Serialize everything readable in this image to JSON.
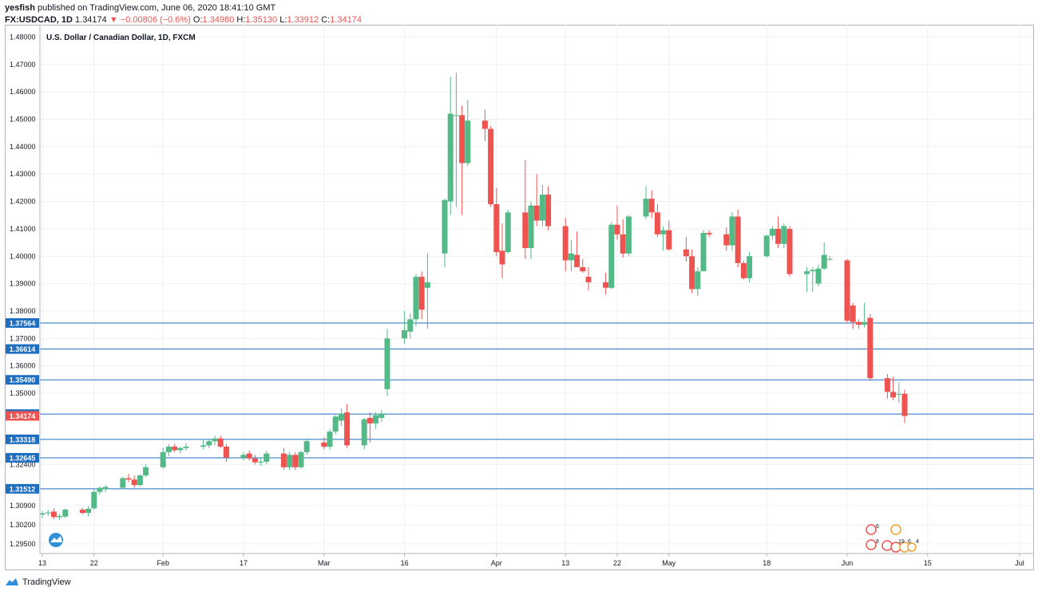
{
  "header": {
    "author": "yesfish",
    "published": "published on TradingView.com, June 06, 2020 18:41:10 GMT",
    "symbol": "FX:USDCAD, 1D",
    "last": "1.34174",
    "change": "▼ −0.00806 (−0.6%)",
    "o_label": "O:",
    "o_value": "1.34980",
    "h_label": "H:",
    "h_value": "1.35130",
    "l_label": "L:",
    "l_value": "1.33912",
    "c_label": "C:",
    "c_value": "1.34174"
  },
  "footer": {
    "brand": "TradingView"
  },
  "colors": {
    "up": "#52b987",
    "down": "#ef5350",
    "level": "#1e6fc2",
    "grid": "#eef0f3",
    "axis": "#b2b5be"
  },
  "chart_data": {
    "type": "candlestick",
    "title": "U.S. Dollar / Canadian Dollar, 1D, FXCM",
    "ylim": [
      1.2915,
      1.4845
    ],
    "y_ticks": [
      "1.48000",
      "1.47000",
      "1.46000",
      "1.45000",
      "1.44000",
      "1.43000",
      "1.42000",
      "1.41000",
      "1.40000",
      "1.39000",
      "1.38000",
      "1.37000",
      "1.36000",
      "1.35000",
      "1.32400",
      "1.30900",
      "1.30200",
      "1.29500"
    ],
    "x_ticks": [
      {
        "label": "13",
        "date": "2020-01-13"
      },
      {
        "label": "22",
        "date": "2020-01-22"
      },
      {
        "label": "Feb",
        "date": "2020-02-03"
      },
      {
        "label": "17",
        "date": "2020-02-17"
      },
      {
        "label": "Mar",
        "date": "2020-03-02"
      },
      {
        "label": "16",
        "date": "2020-03-16"
      },
      {
        "label": "Apr",
        "date": "2020-04-01"
      },
      {
        "label": "13",
        "date": "2020-04-13"
      },
      {
        "label": "22",
        "date": "2020-04-22"
      },
      {
        "label": "May",
        "date": "2020-05-01"
      },
      {
        "label": "18",
        "date": "2020-05-18"
      },
      {
        "label": "Jun",
        "date": "2020-06-01"
      },
      {
        "label": "15",
        "date": "2020-06-15"
      },
      {
        "label": "Jul",
        "date": "2020-07-01"
      }
    ],
    "levels": [
      "1.37564",
      "1.36614",
      "1.35490",
      "1.34239",
      "1.33318",
      "1.32645",
      "1.31512"
    ],
    "last_price": "1.34174",
    "grid": true,
    "series": [
      {
        "date": "2020-01-13",
        "o": 1.3057,
        "h": 1.307,
        "l": 1.3043,
        "c": 1.3062
      },
      {
        "date": "2020-01-14",
        "o": 1.3062,
        "h": 1.3075,
        "l": 1.3052,
        "c": 1.3065
      },
      {
        "date": "2020-01-15",
        "o": 1.3068,
        "h": 1.308,
        "l": 1.304,
        "c": 1.3048
      },
      {
        "date": "2020-01-16",
        "o": 1.3048,
        "h": 1.306,
        "l": 1.3038,
        "c": 1.3052
      },
      {
        "date": "2020-01-17",
        "o": 1.305,
        "h": 1.308,
        "l": 1.3045,
        "c": 1.3075
      },
      {
        "date": "2020-01-20",
        "o": 1.3075,
        "h": 1.3082,
        "l": 1.3058,
        "c": 1.3063
      },
      {
        "date": "2020-01-21",
        "o": 1.3063,
        "h": 1.3088,
        "l": 1.305,
        "c": 1.3078
      },
      {
        "date": "2020-01-22",
        "o": 1.308,
        "h": 1.315,
        "l": 1.3075,
        "c": 1.314
      },
      {
        "date": "2020-01-23",
        "o": 1.314,
        "h": 1.316,
        "l": 1.313,
        "c": 1.3155
      },
      {
        "date": "2020-01-24",
        "o": 1.315,
        "h": 1.3165,
        "l": 1.314,
        "c": 1.3158
      },
      {
        "date": "2020-01-27",
        "o": 1.3155,
        "h": 1.3195,
        "l": 1.315,
        "c": 1.319
      },
      {
        "date": "2020-01-28",
        "o": 1.319,
        "h": 1.3205,
        "l": 1.3175,
        "c": 1.3185
      },
      {
        "date": "2020-01-29",
        "o": 1.3185,
        "h": 1.32,
        "l": 1.3155,
        "c": 1.3165
      },
      {
        "date": "2020-01-30",
        "o": 1.3165,
        "h": 1.3205,
        "l": 1.316,
        "c": 1.32
      },
      {
        "date": "2020-01-31",
        "o": 1.32,
        "h": 1.324,
        "l": 1.3195,
        "c": 1.323
      },
      {
        "date": "2020-02-03",
        "o": 1.323,
        "h": 1.33,
        "l": 1.3225,
        "c": 1.3285
      },
      {
        "date": "2020-02-04",
        "o": 1.3285,
        "h": 1.3315,
        "l": 1.327,
        "c": 1.3305
      },
      {
        "date": "2020-02-05",
        "o": 1.3305,
        "h": 1.3315,
        "l": 1.3285,
        "c": 1.3292
      },
      {
        "date": "2020-02-06",
        "o": 1.3292,
        "h": 1.3305,
        "l": 1.328,
        "c": 1.33
      },
      {
        "date": "2020-02-07",
        "o": 1.33,
        "h": 1.3318,
        "l": 1.329,
        "c": 1.3305
      },
      {
        "date": "2020-02-10",
        "o": 1.3305,
        "h": 1.333,
        "l": 1.3295,
        "c": 1.331
      },
      {
        "date": "2020-02-11",
        "o": 1.331,
        "h": 1.333,
        "l": 1.33,
        "c": 1.3325
      },
      {
        "date": "2020-02-12",
        "o": 1.3325,
        "h": 1.3345,
        "l": 1.331,
        "c": 1.3335
      },
      {
        "date": "2020-02-13",
        "o": 1.3335,
        "h": 1.3345,
        "l": 1.33,
        "c": 1.3305
      },
      {
        "date": "2020-02-14",
        "o": 1.3305,
        "h": 1.3315,
        "l": 1.325,
        "c": 1.3265
      },
      {
        "date": "2020-02-17",
        "o": 1.3265,
        "h": 1.3285,
        "l": 1.3255,
        "c": 1.3275
      },
      {
        "date": "2020-02-18",
        "o": 1.328,
        "h": 1.329,
        "l": 1.3255,
        "c": 1.3262
      },
      {
        "date": "2020-02-19",
        "o": 1.3262,
        "h": 1.3275,
        "l": 1.324,
        "c": 1.3248
      },
      {
        "date": "2020-02-20",
        "o": 1.3248,
        "h": 1.3265,
        "l": 1.3235,
        "c": 1.325
      },
      {
        "date": "2020-02-21",
        "o": 1.325,
        "h": 1.329,
        "l": 1.324,
        "c": 1.328
      },
      {
        "date": "2020-02-24",
        "o": 1.328,
        "h": 1.33,
        "l": 1.322,
        "c": 1.323
      },
      {
        "date": "2020-02-25",
        "o": 1.323,
        "h": 1.3285,
        "l": 1.322,
        "c": 1.3275
      },
      {
        "date": "2020-02-26",
        "o": 1.3275,
        "h": 1.3285,
        "l": 1.322,
        "c": 1.323
      },
      {
        "date": "2020-02-27",
        "o": 1.323,
        "h": 1.329,
        "l": 1.3225,
        "c": 1.3285
      },
      {
        "date": "2020-02-28",
        "o": 1.3285,
        "h": 1.3335,
        "l": 1.3275,
        "c": 1.3325
      },
      {
        "date": "2020-03-02",
        "o": 1.332,
        "h": 1.334,
        "l": 1.3295,
        "c": 1.3305
      },
      {
        "date": "2020-03-03",
        "o": 1.3305,
        "h": 1.337,
        "l": 1.3295,
        "c": 1.336
      },
      {
        "date": "2020-03-04",
        "o": 1.336,
        "h": 1.342,
        "l": 1.335,
        "c": 1.3415
      },
      {
        "date": "2020-03-05",
        "o": 1.34,
        "h": 1.3445,
        "l": 1.338,
        "c": 1.3425
      },
      {
        "date": "2020-03-06",
        "o": 1.343,
        "h": 1.346,
        "l": 1.33,
        "c": 1.331
      },
      {
        "date": "2020-03-09",
        "o": 1.331,
        "h": 1.341,
        "l": 1.3295,
        "c": 1.3405
      },
      {
        "date": "2020-03-10",
        "o": 1.341,
        "h": 1.343,
        "l": 1.332,
        "c": 1.339
      },
      {
        "date": "2020-03-11",
        "o": 1.339,
        "h": 1.343,
        "l": 1.337,
        "c": 1.342
      },
      {
        "date": "2020-03-12",
        "o": 1.341,
        "h": 1.344,
        "l": 1.3395,
        "c": 1.3425
      },
      {
        "date": "2020-03-13",
        "o": 1.3515,
        "h": 1.3735,
        "l": 1.349,
        "c": 1.37
      },
      {
        "date": "2020-03-16",
        "o": 1.37,
        "h": 1.38,
        "l": 1.368,
        "c": 1.373
      },
      {
        "date": "2020-03-17",
        "o": 1.3725,
        "h": 1.379,
        "l": 1.37,
        "c": 1.377
      },
      {
        "date": "2020-03-18",
        "o": 1.377,
        "h": 1.3935,
        "l": 1.3745,
        "c": 1.3925
      },
      {
        "date": "2020-03-19",
        "o": 1.3925,
        "h": 1.3945,
        "l": 1.377,
        "c": 1.3805
      },
      {
        "date": "2020-03-20",
        "o": 1.3885,
        "h": 1.401,
        "l": 1.3735,
        "c": 1.3905
      },
      {
        "date": "2020-03-23",
        "o": 1.401,
        "h": 1.421,
        "l": 1.396,
        "c": 1.4205
      },
      {
        "date": "2020-03-24",
        "o": 1.42,
        "h": 1.4655,
        "l": 1.415,
        "c": 1.452
      },
      {
        "date": "2020-03-25",
        "o": 1.4515,
        "h": 1.467,
        "l": 1.418,
        "c": 1.4515
      },
      {
        "date": "2020-03-26",
        "o": 1.4515,
        "h": 1.455,
        "l": 1.415,
        "c": 1.434
      },
      {
        "date": "2020-03-27",
        "o": 1.434,
        "h": 1.457,
        "l": 1.433,
        "c": 1.4495
      },
      {
        "date": "2020-03-30",
        "o": 1.4495,
        "h": 1.4535,
        "l": 1.442,
        "c": 1.4465
      },
      {
        "date": "2020-03-31",
        "o": 1.4465,
        "h": 1.4475,
        "l": 1.418,
        "c": 1.419
      },
      {
        "date": "2020-04-01",
        "o": 1.419,
        "h": 1.425,
        "l": 1.4,
        "c": 1.4015
      },
      {
        "date": "2020-04-02",
        "o": 1.402,
        "h": 1.412,
        "l": 1.392,
        "c": 1.397
      },
      {
        "date": "2020-04-03",
        "o": 1.4015,
        "h": 1.417,
        "l": 1.401,
        "c": 1.416
      },
      {
        "date": "2020-04-06",
        "o": 1.416,
        "h": 1.435,
        "l": 1.399,
        "c": 1.403
      },
      {
        "date": "2020-04-07",
        "o": 1.403,
        "h": 1.42,
        "l": 1.399,
        "c": 1.4185
      },
      {
        "date": "2020-04-08",
        "o": 1.4185,
        "h": 1.43,
        "l": 1.411,
        "c": 1.413
      },
      {
        "date": "2020-04-09",
        "o": 1.413,
        "h": 1.426,
        "l": 1.411,
        "c": 1.4225
      },
      {
        "date": "2020-04-10",
        "o": 1.4225,
        "h": 1.4255,
        "l": 1.4095,
        "c": 1.411
      },
      {
        "date": "2020-04-13",
        "o": 1.411,
        "h": 1.414,
        "l": 1.3945,
        "c": 1.3985
      },
      {
        "date": "2020-04-14",
        "o": 1.3985,
        "h": 1.406,
        "l": 1.3945,
        "c": 1.401
      },
      {
        "date": "2020-04-15",
        "o": 1.4005,
        "h": 1.409,
        "l": 1.396,
        "c": 1.396
      },
      {
        "date": "2020-04-16",
        "o": 1.396,
        "h": 1.399,
        "l": 1.394,
        "c": 1.3945
      },
      {
        "date": "2020-04-17",
        "o": 1.3925,
        "h": 1.396,
        "l": 1.3875,
        "c": 1.3905
      },
      {
        "date": "2020-04-20",
        "o": 1.3905,
        "h": 1.394,
        "l": 1.386,
        "c": 1.3885
      },
      {
        "date": "2020-04-21",
        "o": 1.3885,
        "h": 1.4125,
        "l": 1.388,
        "c": 1.4115
      },
      {
        "date": "2020-04-22",
        "o": 1.4115,
        "h": 1.4185,
        "l": 1.406,
        "c": 1.408
      },
      {
        "date": "2020-04-23",
        "o": 1.408,
        "h": 1.4135,
        "l": 1.3995,
        "c": 1.401
      },
      {
        "date": "2020-04-24",
        "o": 1.401,
        "h": 1.415,
        "l": 1.4,
        "c": 1.4145
      },
      {
        "date": "2020-04-27",
        "o": 1.4145,
        "h": 1.4255,
        "l": 1.4135,
        "c": 1.421
      },
      {
        "date": "2020-04-28",
        "o": 1.421,
        "h": 1.424,
        "l": 1.414,
        "c": 1.416
      },
      {
        "date": "2020-04-29",
        "o": 1.416,
        "h": 1.419,
        "l": 1.407,
        "c": 1.408
      },
      {
        "date": "2020-04-30",
        "o": 1.408,
        "h": 1.411,
        "l": 1.402,
        "c": 1.4095
      },
      {
        "date": "2020-05-01",
        "o": 1.4095,
        "h": 1.413,
        "l": 1.402,
        "c": 1.4025
      },
      {
        "date": "2020-05-04",
        "o": 1.4025,
        "h": 1.407,
        "l": 1.398,
        "c": 1.4
      },
      {
        "date": "2020-05-05",
        "o": 1.4,
        "h": 1.4025,
        "l": 1.3865,
        "c": 1.388
      },
      {
        "date": "2020-05-06",
        "o": 1.388,
        "h": 1.396,
        "l": 1.3855,
        "c": 1.3945
      },
      {
        "date": "2020-05-07",
        "o": 1.3945,
        "h": 1.4095,
        "l": 1.3945,
        "c": 1.4085
      },
      {
        "date": "2020-05-08",
        "o": 1.4085,
        "h": 1.4095,
        "l": 1.407,
        "c": 1.408
      },
      {
        "date": "2020-05-11",
        "o": 1.408,
        "h": 1.4105,
        "l": 1.402,
        "c": 1.404
      },
      {
        "date": "2020-05-12",
        "o": 1.404,
        "h": 1.416,
        "l": 1.402,
        "c": 1.4145
      },
      {
        "date": "2020-05-13",
        "o": 1.4145,
        "h": 1.417,
        "l": 1.396,
        "c": 1.3975
      },
      {
        "date": "2020-05-14",
        "o": 1.3975,
        "h": 1.3985,
        "l": 1.3915,
        "c": 1.392
      },
      {
        "date": "2020-05-15",
        "o": 1.392,
        "h": 1.4015,
        "l": 1.3905,
        "c": 1.4
      },
      {
        "date": "2020-05-18",
        "o": 1.4,
        "h": 1.408,
        "l": 1.3995,
        "c": 1.4075
      },
      {
        "date": "2020-05-19",
        "o": 1.4075,
        "h": 1.411,
        "l": 1.406,
        "c": 1.41
      },
      {
        "date": "2020-05-20",
        "o": 1.41,
        "h": 1.4145,
        "l": 1.403,
        "c": 1.4045
      },
      {
        "date": "2020-05-21",
        "o": 1.4045,
        "h": 1.412,
        "l": 1.403,
        "c": 1.411
      },
      {
        "date": "2020-05-22",
        "o": 1.41,
        "h": 1.411,
        "l": 1.3925,
        "c": 1.3935
      },
      {
        "date": "2020-05-25",
        "o": 1.3935,
        "h": 1.396,
        "l": 1.387,
        "c": 1.3945
      },
      {
        "date": "2020-05-26",
        "o": 1.3945,
        "h": 1.396,
        "l": 1.387,
        "c": 1.395
      },
      {
        "date": "2020-05-27",
        "o": 1.39,
        "h": 1.397,
        "l": 1.389,
        "c": 1.3955
      },
      {
        "date": "2020-05-28",
        "o": 1.3955,
        "h": 1.405,
        "l": 1.395,
        "c": 1.4005
      },
      {
        "date": "2020-05-29",
        "o": 1.399,
        "h": 1.4,
        "l": 1.3985,
        "c": 1.399
      },
      {
        "date": "2020-06-01",
        "o": 1.3985,
        "h": 1.399,
        "l": 1.3755,
        "c": 1.3765
      },
      {
        "date": "2020-06-02",
        "o": 1.382,
        "h": 1.383,
        "l": 1.3735,
        "c": 1.376
      },
      {
        "date": "2020-06-03",
        "o": 1.376,
        "h": 1.377,
        "l": 1.3735,
        "c": 1.375
      },
      {
        "date": "2020-06-04",
        "o": 1.375,
        "h": 1.383,
        "l": 1.374,
        "c": 1.376
      },
      {
        "date": "2020-06-05",
        "o": 1.3775,
        "h": 1.379,
        "l": 1.3545,
        "c": 1.3555
      },
      {
        "date": "2020-06-08",
        "o": 1.3555,
        "h": 1.357,
        "l": 1.348,
        "c": 1.3505
      },
      {
        "date": "2020-06-09",
        "o": 1.3505,
        "h": 1.356,
        "l": 1.3475,
        "c": 1.3485
      },
      {
        "date": "2020-06-10",
        "o": 1.3495,
        "h": 1.354,
        "l": 1.3465,
        "c": 1.3498
      },
      {
        "date": "2020-06-11",
        "o": 1.3498,
        "h": 1.3513,
        "l": 1.3391,
        "c": 1.3417
      }
    ]
  }
}
